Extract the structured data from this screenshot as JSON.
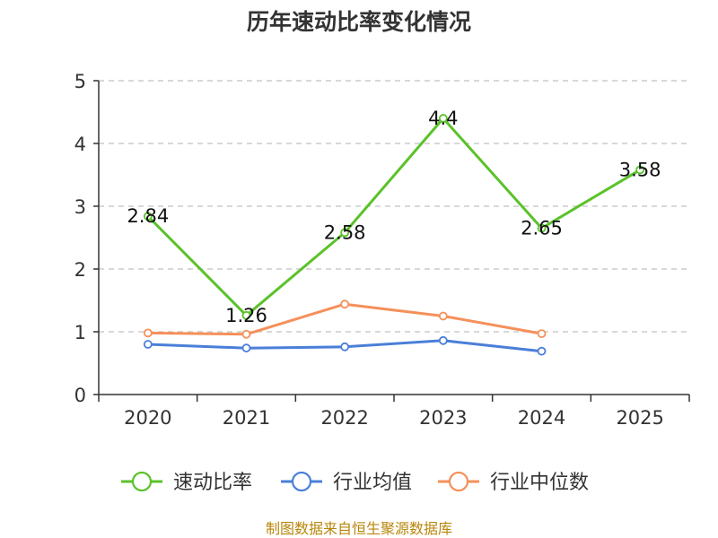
{
  "title": "历年速动比率变化情况",
  "source": "制图数据来自恒生聚源数据库",
  "chart_data": {
    "type": "line",
    "title": "历年速动比率变化情况",
    "categories": [
      "2020",
      "2021",
      "2022",
      "2023",
      "2024",
      "2025"
    ],
    "ylim": [
      0,
      5
    ],
    "yticks": [
      0,
      1,
      2,
      3,
      4,
      5
    ],
    "grid": true,
    "legend_position": "bottom",
    "series": [
      {
        "name": "速动比率",
        "color": "#5ac229",
        "values": [
          2.84,
          1.26,
          2.58,
          4.4,
          2.65,
          3.58
        ],
        "labels": [
          "2.84",
          "1.26",
          "2.58",
          "4.4",
          "2.65",
          "3.58"
        ]
      },
      {
        "name": "行业均值",
        "color": "#4a7fd8",
        "values": [
          0.8,
          0.74,
          0.76,
          0.86,
          0.69,
          null
        ]
      },
      {
        "name": "行业中位数",
        "color": "#f5905a",
        "values": [
          0.98,
          0.96,
          1.44,
          1.25,
          0.97,
          null
        ]
      }
    ]
  }
}
